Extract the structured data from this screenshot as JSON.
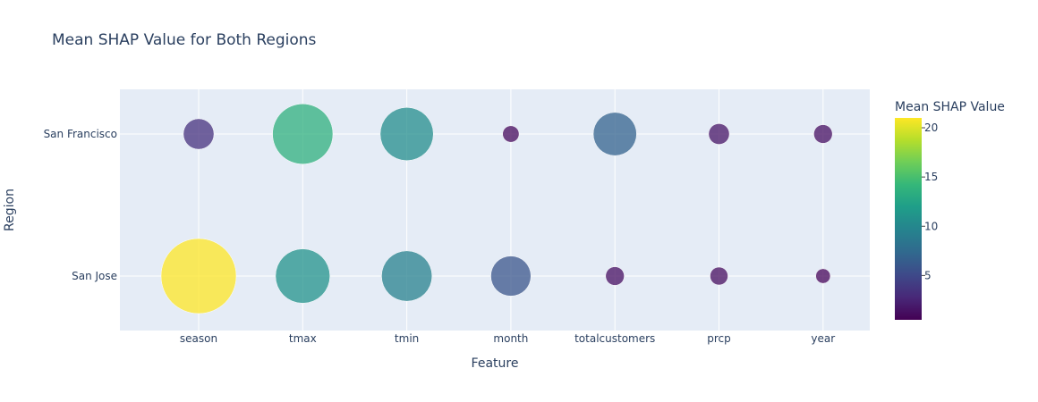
{
  "chart_data": {
    "type": "scatter",
    "title": "Mean SHAP Value for Both Regions",
    "xlabel": "Feature",
    "ylabel": "Region",
    "categories": [
      "season",
      "tmax",
      "tmin",
      "month",
      "totalcustomers",
      "prcp",
      "year"
    ],
    "regions": [
      "San Francisco",
      "San Jose"
    ],
    "series": [
      {
        "name": "San Francisco",
        "values": [
          3.5,
          13.5,
          10.5,
          1.0,
          7.0,
          1.6,
          1.3
        ]
      },
      {
        "name": "San Jose",
        "values": [
          21.0,
          11.0,
          9.5,
          6.0,
          1.3,
          1.2,
          0.8
        ]
      }
    ],
    "colorbar": {
      "title": "Mean SHAP Value",
      "range": [
        0.5,
        21
      ],
      "ticks": [
        5,
        10,
        15,
        20
      ],
      "colorscale": "Viridis"
    },
    "grid": true,
    "legend": "right"
  }
}
